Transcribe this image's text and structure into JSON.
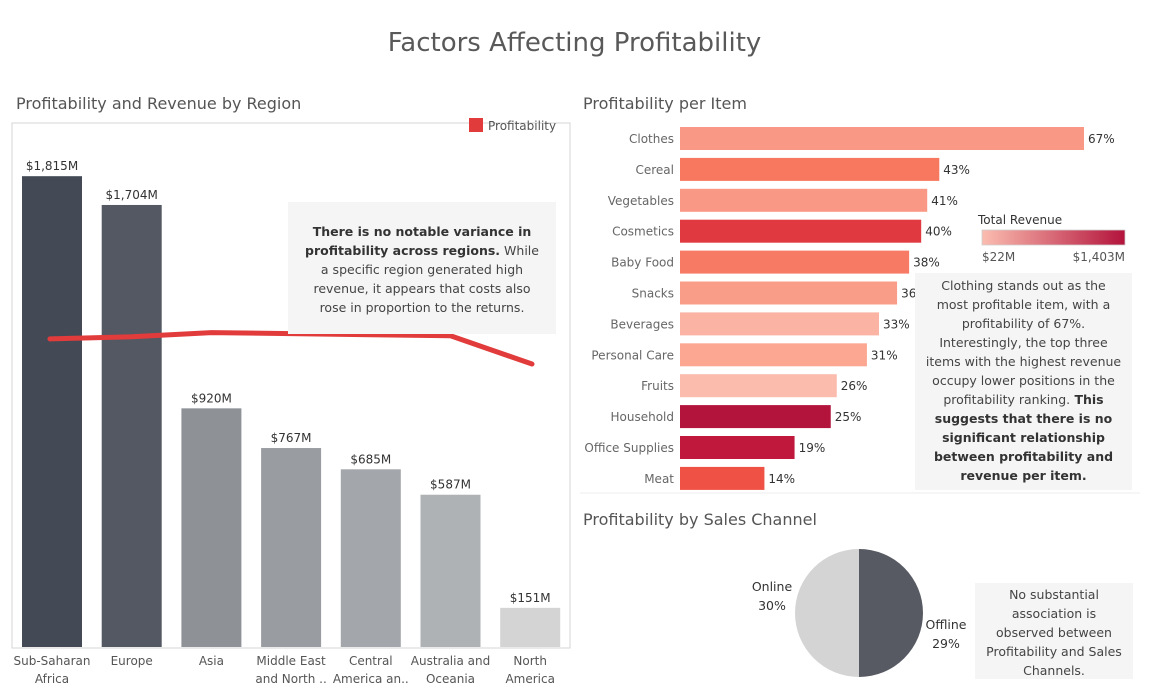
{
  "title": "Factors Affecting Profitability",
  "colors": {
    "profit_line": "#e23b3b",
    "revenue_low": "#fbbdb0",
    "revenue_high": "#b3133b",
    "pie_online": "#d4d4d4",
    "pie_offline": "#575a62"
  },
  "region_panel": {
    "title": "Profitability and Revenue by Region",
    "legend_label": "Profitability",
    "note_bold": "There is no notable variance in profitability across regions.",
    "note_rest": " While a specific region generated high revenue, it appears that costs also rose in proportion to the returns."
  },
  "item_panel": {
    "title": "Profitability per Item",
    "legend_title": "Total Revenue",
    "legend_min": "$22M",
    "legend_max": "$1,403M",
    "note_rest": "Clothing stands out as the most profitable item, with a profitability of 67%. Interestingly, the top three items with the highest revenue occupy lower positions in the profitability ranking.",
    "note_bold": " This suggests that there is no significant relationship between profitability and revenue per item."
  },
  "channel_panel": {
    "title": "Profitability by Sales Channel",
    "note": "No substantial association is observed between Profitability and Sales Channels."
  },
  "chart_data": [
    {
      "type": "bar",
      "categories": [
        [
          "Sub-Saharan",
          "Africa"
        ],
        [
          "Europe"
        ],
        [
          "Asia"
        ],
        [
          "Middle East",
          "and North .."
        ],
        [
          "Central",
          "America an.."
        ],
        [
          "Australia and",
          "Oceania"
        ],
        [
          "North",
          "America"
        ]
      ],
      "series": [
        {
          "name": "Revenue",
          "values": [
            1815,
            1704,
            920,
            767,
            685,
            587,
            151
          ],
          "labels": [
            "$1,815M",
            "$1,704M",
            "$920M",
            "$767M",
            "$685M",
            "$587M",
            "$151M"
          ],
          "colors": [
            "#444a55",
            "#535862",
            "#8e9297",
            "#999da2",
            "#a3a6aa",
            "#afb2b5",
            "#d4d4d4"
          ]
        },
        {
          "name": "Profitability",
          "type": "line",
          "values": [
            29.4,
            29.6,
            30.0,
            29.9,
            29.8,
            29.7,
            27.0
          ]
        }
      ],
      "ylim": [
        0,
        2020
      ],
      "profit_ylim": [
        0,
        50
      ]
    },
    {
      "type": "bar",
      "orientation": "horizontal",
      "categories": [
        "Clothes",
        "Cereal",
        "Vegetables",
        "Cosmetics",
        "Baby Food",
        "Snacks",
        "Beverages",
        "Personal Care",
        "Fruits",
        "Household",
        "Office Supplies",
        "Meat"
      ],
      "values": [
        67,
        43,
        41,
        40,
        38,
        36,
        33,
        31,
        26,
        25,
        19,
        14
      ],
      "labels": [
        "67%",
        "43%",
        "41%",
        "40%",
        "38%",
        "36",
        "33%",
        "31%",
        "26%",
        "25%",
        "19%",
        "14%"
      ],
      "colors": [
        "#f99885",
        "#f7775f",
        "#f99885",
        "#e0393f",
        "#f77b64",
        "#fa9d88",
        "#fbb3a3",
        "#fba792",
        "#fcbcad",
        "#b2143c",
        "#c0183d",
        "#ef5145"
      ],
      "xlim": [
        0,
        67
      ]
    },
    {
      "type": "pie",
      "slices": [
        {
          "name": "Online",
          "value": 50,
          "label": "30%"
        },
        {
          "name": "Offline",
          "value": 50,
          "label": "29%"
        }
      ]
    }
  ]
}
